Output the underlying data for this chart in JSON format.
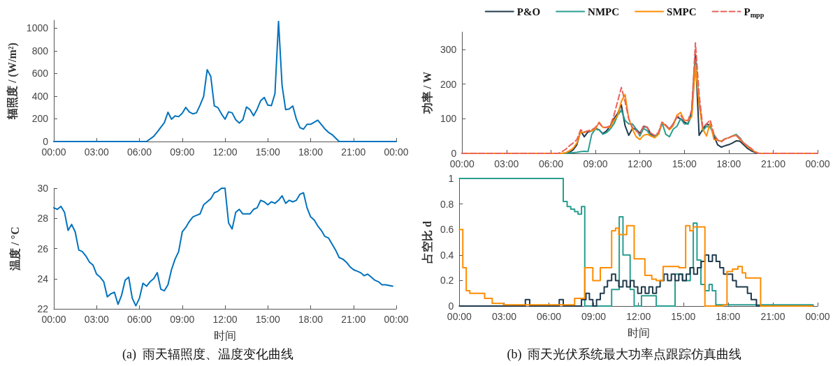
{
  "chart_data": [
    {
      "type": "line",
      "ylabel": "辐照度 / (W/m²)",
      "marker": "none",
      "grid": false,
      "legend": false,
      "xlim": [
        0,
        24
      ],
      "xticks": [
        {
          "value": 0,
          "label": "00:00"
        },
        {
          "value": 3,
          "label": "03:00"
        },
        {
          "value": 6,
          "label": "06:00"
        },
        {
          "value": 9,
          "label": "09:00"
        },
        {
          "value": 12,
          "label": "12:00"
        },
        {
          "value": 15,
          "label": "15:00"
        },
        {
          "value": 18,
          "label": "18:00"
        },
        {
          "value": 21,
          "label": "21:00"
        },
        {
          "value": 24,
          "label": "00:00"
        }
      ],
      "ylim": [
        0,
        1070
      ],
      "yticks": [
        0,
        200,
        400,
        600,
        800,
        1000
      ],
      "x": [
        0,
        6.5,
        7,
        7.25,
        7.75,
        8,
        8.25,
        8.5,
        8.75,
        9,
        9.25,
        9.5,
        9.75,
        10,
        10.25,
        10.5,
        10.75,
        11,
        11.25,
        11.5,
        11.75,
        12,
        12.25,
        12.5,
        12.75,
        13,
        13.25,
        13.5,
        13.75,
        14,
        14.25,
        14.5,
        14.75,
        15,
        15.25,
        15.5,
        15.75,
        16,
        16.25,
        16.5,
        16.75,
        17,
        17.25,
        17.5,
        17.75,
        18,
        18.5,
        19,
        19.25,
        19.5,
        20,
        24
      ],
      "series": [
        {
          "color": "#0072bd",
          "values": [
            0,
            0,
            45,
            84,
            167,
            258,
            197,
            226,
            219,
            249,
            301,
            260,
            244,
            253,
            321,
            398,
            633,
            575,
            314,
            299,
            244,
            197,
            262,
            253,
            192,
            163,
            192,
            305,
            281,
            228,
            285,
            360,
            389,
            321,
            317,
            423,
            1060,
            493,
            281,
            287,
            314,
            197,
            122,
            109,
            152,
            152,
            188,
            111,
            81,
            61,
            0,
            0
          ]
        }
      ]
    },
    {
      "type": "line",
      "ylabel": "温度 / °C",
      "xlabel": "时间",
      "marker": "none",
      "grid": false,
      "legend": false,
      "annotations": [
        "(a)  雨天辐照度、温度变化曲线"
      ],
      "xlim": [
        0,
        24
      ],
      "xticks": [
        {
          "value": 0,
          "label": "00:00"
        },
        {
          "value": 3,
          "label": "03:00"
        },
        {
          "value": 6,
          "label": "06:00"
        },
        {
          "value": 9,
          "label": "09:00"
        },
        {
          "value": 12,
          "label": "12:00"
        },
        {
          "value": 15,
          "label": "15:00"
        },
        {
          "value": 18,
          "label": "18:00"
        },
        {
          "value": 21,
          "label": "21:00"
        },
        {
          "value": 24,
          "label": "00:00"
        }
      ],
      "ylim": [
        22,
        30
      ],
      "yticks": [
        22,
        24,
        26,
        28,
        30
      ],
      "x": [
        0,
        0.25,
        0.5,
        0.75,
        1,
        1.25,
        1.5,
        1.75,
        2,
        2.25,
        2.5,
        2.75,
        3,
        3.25,
        3.5,
        3.75,
        4,
        4.25,
        4.5,
        4.75,
        5,
        5.25,
        5.5,
        5.75,
        6,
        6.25,
        6.5,
        6.75,
        7,
        7.25,
        7.5,
        7.75,
        8,
        8.25,
        8.5,
        8.75,
        9,
        9.25,
        9.5,
        9.75,
        10,
        10.25,
        10.5,
        10.75,
        11,
        11.25,
        11.5,
        11.75,
        12,
        12.25,
        12.5,
        12.75,
        13,
        13.25,
        13.5,
        13.75,
        14,
        14.25,
        14.5,
        14.75,
        15,
        15.25,
        15.5,
        15.75,
        16,
        16.25,
        16.5,
        16.75,
        17,
        17.25,
        17.5,
        17.75,
        18,
        18.25,
        18.5,
        18.75,
        19,
        19.25,
        19.5,
        19.75,
        20,
        20.25,
        20.5,
        20.75,
        21,
        21.25,
        21.5,
        21.75,
        22,
        22.25,
        22.5,
        22.75,
        23,
        23.25,
        23.75
      ],
      "series": [
        {
          "color": "#0072bd",
          "values": [
            28.7,
            28.6,
            28.8,
            28.4,
            27.2,
            27.6,
            27.1,
            25.9,
            25.8,
            25.5,
            25.1,
            24.9,
            24.3,
            24.1,
            23.8,
            22.8,
            23.0,
            23.1,
            22.3,
            22.9,
            23.9,
            24.1,
            22.7,
            22.2,
            22.7,
            23.7,
            23.5,
            23.8,
            24.0,
            24.4,
            23.3,
            23.2,
            23.6,
            24.6,
            25.3,
            25.8,
            27.1,
            27.4,
            27.8,
            28.1,
            28.2,
            28.3,
            28.9,
            29.1,
            29.3,
            29.7,
            29.8,
            30.0,
            30.0,
            27.7,
            27.3,
            28.4,
            28.6,
            28.3,
            28.3,
            28.3,
            28.6,
            28.7,
            29.2,
            29.1,
            28.9,
            29.1,
            29.0,
            29.2,
            29.5,
            29.0,
            29.2,
            29.1,
            29.2,
            29.6,
            29.7,
            28.7,
            28.1,
            27.9,
            27.5,
            27.2,
            26.8,
            26.7,
            26.3,
            25.9,
            25.4,
            25.3,
            25.1,
            24.8,
            24.6,
            24.5,
            24.4,
            24.2,
            24.3,
            24.1,
            23.9,
            23.8,
            23.6,
            23.6,
            23.5
          ]
        }
      ]
    },
    {
      "type": "line",
      "ylabel": "功率 / W",
      "marker": "none",
      "grid": false,
      "legend": "top",
      "xlim": [
        0,
        24
      ],
      "xticks": [
        {
          "value": 0,
          "label": "00:00"
        },
        {
          "value": 3,
          "label": "03:00"
        },
        {
          "value": 6,
          "label": "06:00"
        },
        {
          "value": 9,
          "label": "09:00"
        },
        {
          "value": 12,
          "label": "12:00"
        },
        {
          "value": 15,
          "label": "15:00"
        },
        {
          "value": 18,
          "label": "18:00"
        },
        {
          "value": 21,
          "label": "21:00"
        },
        {
          "value": 24,
          "label": "00:00"
        }
      ],
      "ylim": [
        0,
        350
      ],
      "yticks": [
        0,
        100,
        200,
        300
      ],
      "x": [
        0,
        6.5,
        6.75,
        7,
        7.25,
        7.5,
        7.75,
        8,
        8.25,
        8.5,
        8.75,
        9,
        9.25,
        9.5,
        9.75,
        10,
        10.25,
        10.5,
        10.75,
        11,
        11.25,
        11.5,
        11.75,
        12,
        12.25,
        12.5,
        12.75,
        13,
        13.25,
        13.5,
        13.75,
        14,
        14.25,
        14.5,
        14.75,
        15,
        15.25,
        15.5,
        15.75,
        16,
        16.25,
        16.5,
        16.75,
        17,
        17.25,
        17.5,
        17.75,
        18,
        18.25,
        18.5,
        18.75,
        19,
        19.25,
        19.5,
        19.75,
        20,
        24
      ],
      "series": [
        {
          "name": "P&O",
          "color": "#1f3a4d",
          "values": [
            0,
            0,
            0,
            0,
            3,
            10,
            25,
            65,
            48,
            62,
            65,
            72,
            68,
            57,
            65,
            78,
            100,
            115,
            140,
            80,
            52,
            72,
            70,
            58,
            78,
            75,
            55,
            50,
            55,
            88,
            80,
            70,
            85,
            105,
            100,
            90,
            85,
            120,
            285,
            52,
            70,
            85,
            80,
            50,
            25,
            18,
            22,
            25,
            30,
            36,
            35,
            25,
            15,
            8,
            3,
            0,
            0
          ]
        },
        {
          "name": "NMPC",
          "color": "#2a9d8f",
          "values": [
            0,
            0,
            0,
            0,
            1,
            2,
            3,
            5,
            6,
            5,
            55,
            70,
            68,
            55,
            60,
            70,
            85,
            110,
            125,
            95,
            85,
            85,
            70,
            50,
            72,
            65,
            50,
            50,
            55,
            88,
            55,
            48,
            70,
            78,
            100,
            85,
            85,
            110,
            270,
            150,
            65,
            78,
            75,
            55,
            38,
            35,
            42,
            45,
            50,
            55,
            45,
            30,
            22,
            12,
            null,
            null,
            null
          ]
        },
        {
          "name": "SMPC",
          "color": "#ff8c00",
          "values": [
            0,
            0,
            0,
            2,
            8,
            15,
            30,
            62,
            60,
            65,
            65,
            70,
            90,
            75,
            75,
            75,
            95,
            110,
            150,
            170,
            100,
            70,
            48,
            40,
            52,
            55,
            50,
            45,
            55,
            90,
            80,
            68,
            80,
            110,
            118,
            95,
            95,
            105,
            255,
            140,
            70,
            50,
            88,
            40,
            38,
            35,
            42,
            45,
            50,
            52,
            40,
            30,
            20,
            12,
            5,
            0,
            0
          ]
        },
        {
          "name": "P$_{mpp}$",
          "color": "#e8625a",
          "line_style": "dashed",
          "values": [
            0,
            0,
            5,
            12,
            22,
            30,
            40,
            68,
            62,
            65,
            68,
            75,
            88,
            75,
            75,
            80,
            110,
            150,
            190,
            150,
            100,
            75,
            65,
            55,
            80,
            75,
            58,
            52,
            60,
            90,
            82,
            70,
            85,
            105,
            110,
            95,
            95,
            125,
            319,
            170,
            75,
            85,
            96,
            55,
            38,
            33,
            42,
            45,
            50,
            52,
            43,
            30,
            22,
            15,
            5,
            0,
            0
          ]
        }
      ]
    },
    {
      "type": "step",
      "ylabel": "占空比 d",
      "xlabel": "时间",
      "marker": "none",
      "grid": false,
      "legend": false,
      "annotations": [
        "(b)  雨天光伏系统最大功率点跟踪仿真曲线"
      ],
      "xlim": [
        0,
        24
      ],
      "xticks": [
        {
          "value": 0,
          "label": "00:00"
        },
        {
          "value": 3,
          "label": "03:00"
        },
        {
          "value": 6,
          "label": "06:00"
        },
        {
          "value": 9,
          "label": "09:00"
        },
        {
          "value": 12,
          "label": "12:00"
        },
        {
          "value": 15,
          "label": "15:00"
        },
        {
          "value": 18,
          "label": "18:00"
        },
        {
          "value": 21,
          "label": "21:00"
        },
        {
          "value": 24,
          "label": "00:00"
        }
      ],
      "ylim": [
        0,
        1
      ],
      "yticks": [
        0,
        0.2,
        0.4,
        0.6,
        0.8,
        1
      ],
      "series": [
        {
          "color": "#2a9d8f",
          "x": [
            0,
            6.96,
            7.22,
            7.46,
            7.72,
            7.95,
            8.18,
            8.4,
            10.2,
            10.71,
            10.96,
            11.44,
            11.71,
            12.2,
            13.19,
            14.45,
            14.94,
            15.47,
            15.67,
            15.92,
            16.18,
            16.45,
            16.73,
            16.94,
            17.18,
            23.7
          ],
          "values": [
            1,
            0.82,
            0.78,
            0.76,
            0.74,
            0.72,
            0.78,
            0,
            0.13,
            0.7,
            0.4,
            0.13,
            0,
            0.08,
            0,
            0.25,
            0.2,
            0.3,
            0.65,
            0.36,
            0.17,
            0.12,
            0.17,
            0.12,
            0.01,
            0.01
          ]
        },
        {
          "color": "#1f3a4d",
          "x": [
            0,
            4.42,
            4.71,
            6.69,
            6.96,
            8.18,
            8.48,
            8.71,
            8.94,
            9.19,
            9.44,
            9.7,
            9.92,
            10.2,
            10.46,
            10.68,
            10.96,
            11.2,
            11.45,
            11.7,
            11.95,
            12.2,
            12.45,
            12.7,
            12.95,
            13.2,
            13.45,
            13.7,
            13.95,
            14.2,
            14.45,
            14.7,
            14.95,
            15.2,
            15.45,
            15.7,
            15.95,
            16.2,
            16.45,
            16.7,
            16.95,
            17.2,
            17.45,
            17.7,
            17.93,
            18.3,
            18.55,
            19.05,
            19.3,
            19.55,
            19.9,
            23.7
          ],
          "values": [
            0,
            0.05,
            0,
            0.05,
            0,
            0.05,
            0.1,
            0.05,
            0,
            0.05,
            0.1,
            0.15,
            0.2,
            0.25,
            0.2,
            0.15,
            0.2,
            0.15,
            0.2,
            0.15,
            0.1,
            0.15,
            0.1,
            0.15,
            0.1,
            0.15,
            0.2,
            0.25,
            0.2,
            0.25,
            0.2,
            0.25,
            0.2,
            0.25,
            0.3,
            0.25,
            0.3,
            0.35,
            0.4,
            0.35,
            0.4,
            0.35,
            0.3,
            0.25,
            0.25,
            0.2,
            0.15,
            0.15,
            0.1,
            0.05,
            0,
            0
          ]
        },
        {
          "color": "#ff8c00",
          "x": [
            0,
            0.23,
            0.46,
            0.7,
            1.69,
            2.2,
            2.96,
            7.72,
            8.4,
            8.94,
            9.44,
            10.2,
            10.46,
            10.68,
            11.21,
            11.71,
            12.43,
            12.89,
            13.19,
            13.65,
            14.71,
            15.16,
            15.44,
            15.67,
            16.45,
            17.67,
            17.93,
            18.3,
            18.66,
            18.95,
            19.18,
            20.18,
            23.67
          ],
          "values": [
            0.6,
            0.3,
            0.12,
            0.1,
            0.06,
            0.02,
            0.01,
            0.06,
            0.3,
            0.2,
            0.3,
            0.59,
            0.61,
            0.56,
            0.63,
            0.37,
            0.24,
            0.21,
            0.2,
            0.31,
            0.3,
            0.63,
            0.59,
            0.62,
            0,
            0.01,
            0.27,
            0.29,
            0.31,
            0.26,
            0.22,
            0,
            0
          ]
        }
      ]
    }
  ]
}
